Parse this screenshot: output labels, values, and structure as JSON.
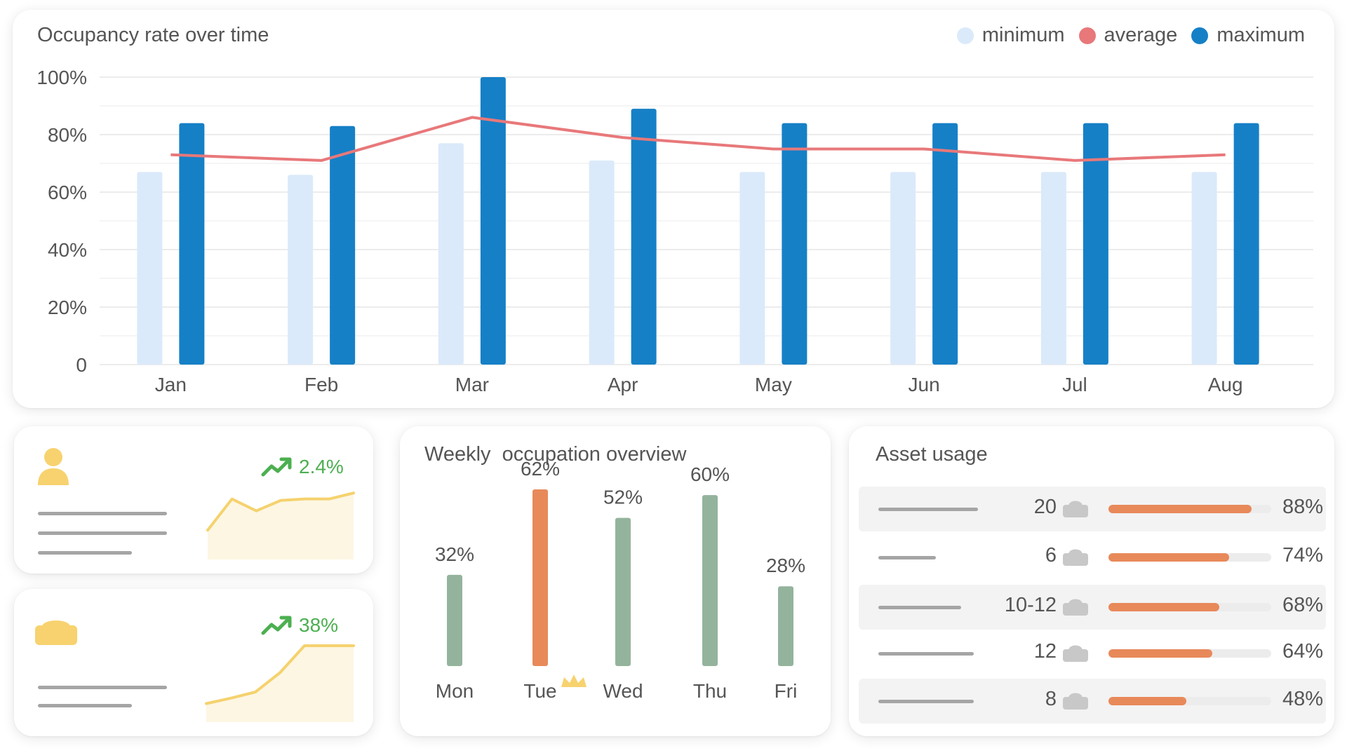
{
  "occupancy": {
    "title": "Occupancy rate over time",
    "legend": [
      {
        "label": "minimum",
        "color": "#dbeafa"
      },
      {
        "label": "average",
        "color": "#e8787a"
      },
      {
        "label": "maximum",
        "color": "#1680c6"
      }
    ]
  },
  "chart_data": [
    {
      "type": "bar",
      "title": "Occupancy rate over time",
      "categories": [
        "Jan",
        "Feb",
        "Mar",
        "Apr",
        "May",
        "Jun",
        "Jul",
        "Aug"
      ],
      "series": [
        {
          "name": "minimum",
          "type": "bar",
          "color": "#dbeafa",
          "values": [
            67,
            66,
            77,
            71,
            67,
            67,
            67,
            67
          ]
        },
        {
          "name": "maximum",
          "type": "bar",
          "color": "#1680c6",
          "values": [
            84,
            83,
            100,
            89,
            84,
            84,
            84,
            84
          ]
        },
        {
          "name": "average",
          "type": "line",
          "color": "#e8787a",
          "values": [
            73,
            71,
            86,
            79,
            75,
            75,
            71,
            73
          ]
        }
      ],
      "yticks": [
        "100%",
        "80%",
        "60%",
        "40%",
        "20%",
        "0"
      ],
      "ylim": [
        0,
        100
      ],
      "grid": true,
      "legend": "top-right"
    },
    {
      "type": "bar",
      "title": "Weekly  occupation overview",
      "categories": [
        "Mon",
        "Tue",
        "Wed",
        "Thu",
        "Fri"
      ],
      "values": [
        32,
        62,
        52,
        60,
        28
      ],
      "value_labels": [
        "32%",
        "62%",
        "52%",
        "60%",
        "28%"
      ],
      "highlight": "Tue",
      "colors": {
        "default": "#94b39d",
        "highlight": "#e8895a"
      }
    }
  ],
  "stats": [
    {
      "trend": "2.4%",
      "icon": "person-icon",
      "sparkline": [
        0.3,
        0.72,
        0.56,
        0.7,
        0.72,
        0.72,
        0.8
      ]
    },
    {
      "trend": "38%",
      "icon": "sofa-icon",
      "sparkline": [
        0.15,
        0.22,
        0.3,
        0.55,
        0.9,
        0.9,
        0.9
      ]
    }
  ],
  "assets": {
    "title": "Asset usage",
    "rows": [
      {
        "count": "20",
        "percent": "88%",
        "fill": 0.88
      },
      {
        "count": "6",
        "percent": "74%",
        "fill": 0.74
      },
      {
        "count": "10-12",
        "percent": "68%",
        "fill": 0.68
      },
      {
        "count": "12",
        "percent": "64%",
        "fill": 0.64
      },
      {
        "count": "8",
        "percent": "48%",
        "fill": 0.48
      }
    ]
  }
}
